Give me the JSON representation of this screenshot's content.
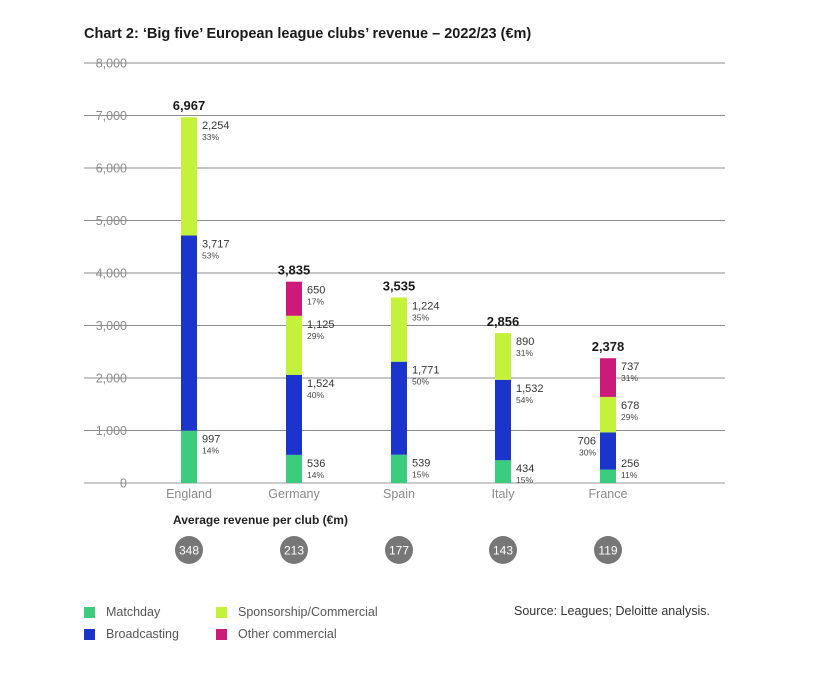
{
  "chart_data": {
    "type": "bar",
    "stacked": true,
    "title": "Chart 2: ‘Big five’ European league clubs’ revenue – 2022/23 (€m)",
    "xlabel": "",
    "ylabel": "",
    "ylim": [
      0,
      8000
    ],
    "yticks": [
      "0",
      "1,000",
      "2,000",
      "3,000",
      "4,000",
      "5,000",
      "6,000",
      "7,000",
      "8,000"
    ],
    "grid": true,
    "categories": [
      "England",
      "Germany",
      "Spain",
      "Italy",
      "France"
    ],
    "totals": [
      6967,
      3835,
      3535,
      2856,
      2378
    ],
    "total_labels": [
      "6,967",
      "3,835",
      "3,535",
      "2,856",
      "2,378"
    ],
    "series": [
      {
        "name": "Matchday",
        "color": "#3ccc7e",
        "values": [
          997,
          536,
          539,
          434,
          256
        ],
        "labels": [
          "997",
          "536",
          "539",
          "434",
          "256"
        ],
        "pcts": [
          "14%",
          "14%",
          "15%",
          "15%",
          "11%"
        ]
      },
      {
        "name": "Broadcasting",
        "color": "#1a34cc",
        "values": [
          3717,
          1524,
          1771,
          1532,
          706
        ],
        "labels": [
          "3,717",
          "1,524",
          "1,771",
          "1,532",
          "706"
        ],
        "pcts": [
          "53%",
          "40%",
          "50%",
          "54%",
          "30%"
        ]
      },
      {
        "name": "Sponsorship/Commercial",
        "color": "#c4f13a",
        "values": [
          2254,
          1125,
          1224,
          890,
          678
        ],
        "labels": [
          "2,254",
          "1,125",
          "1,224",
          "890",
          "678"
        ],
        "pcts": [
          "33%",
          "29%",
          "35%",
          "31%",
          "29%"
        ]
      },
      {
        "name": "Other commercial",
        "color": "#cc1a7a",
        "values": [
          0,
          650,
          0,
          0,
          737
        ],
        "labels": [
          "",
          "650",
          "",
          "",
          "737"
        ],
        "pcts": [
          "",
          "17%",
          "",
          "",
          "31%"
        ]
      }
    ],
    "legend_position": "bottom-left"
  },
  "average": {
    "label": "Average revenue per club (€m)",
    "values": [
      "348",
      "213",
      "177",
      "143",
      "119"
    ],
    "circle_color": "#777777"
  },
  "legend": {
    "items": [
      {
        "label": "Matchday",
        "color": "#3ccc7e"
      },
      {
        "label": "Sponsorship/Commercial",
        "color": "#c4f13a"
      },
      {
        "label": "Broadcasting",
        "color": "#1a34cc"
      },
      {
        "label": "Other commercial",
        "color": "#cc1a7a"
      }
    ]
  },
  "source": "Source: Leagues; Deloitte analysis."
}
